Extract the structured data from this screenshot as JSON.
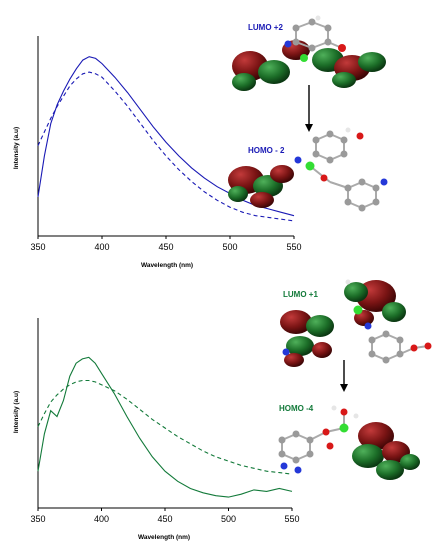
{
  "colors": {
    "blue": "#1a1ab5",
    "green": "#137a3a",
    "lobe_red": "#7a1414",
    "lobe_green": "#1c6e28",
    "atom_grey": "#9a9a9a",
    "atom_white": "#e6e6e6",
    "atom_red": "#d81818",
    "atom_blue": "#2438d8",
    "atom_metal": "#33dd33"
  },
  "chart_data": [
    {
      "type": "line",
      "xlabel": "Wavelength (nm)",
      "ylabel": "Intensity (a.u)",
      "xlim": [
        350,
        550
      ],
      "ylim": [
        0,
        1
      ],
      "xticks": [
        350,
        400,
        450,
        500,
        550
      ],
      "grid": false,
      "color": "#1a1ab5",
      "series": [
        {
          "style": "solid",
          "x": [
            350,
            355,
            360,
            365,
            370,
            375,
            380,
            385,
            390,
            395,
            400,
            410,
            420,
            430,
            440,
            450,
            460,
            470,
            480,
            490,
            500,
            510,
            520,
            530,
            540,
            550
          ],
          "y": [
            0.17,
            0.41,
            0.6,
            0.71,
            0.79,
            0.86,
            0.92,
            0.97,
            0.99,
            0.98,
            0.95,
            0.87,
            0.78,
            0.68,
            0.58,
            0.49,
            0.41,
            0.34,
            0.28,
            0.23,
            0.19,
            0.15,
            0.12,
            0.1,
            0.08,
            0.06
          ]
        },
        {
          "style": "dashed",
          "x": [
            350,
            355,
            360,
            365,
            370,
            375,
            380,
            385,
            390,
            395,
            400,
            410,
            420,
            430,
            440,
            450,
            460,
            470,
            480,
            490,
            500,
            510,
            520,
            530,
            540,
            550
          ],
          "y": [
            0.47,
            0.55,
            0.63,
            0.7,
            0.76,
            0.82,
            0.86,
            0.89,
            0.9,
            0.89,
            0.87,
            0.79,
            0.7,
            0.6,
            0.5,
            0.41,
            0.33,
            0.26,
            0.2,
            0.15,
            0.11,
            0.08,
            0.06,
            0.05,
            0.04,
            0.03
          ]
        }
      ],
      "annotations": [
        "LUMO +2",
        "HOMO - 2"
      ]
    },
    {
      "type": "line",
      "xlabel": "Wavelength (nm)",
      "ylabel": "Intensity (a.u)",
      "xlim": [
        350,
        550
      ],
      "ylim": [
        0,
        1
      ],
      "xticks": [
        350,
        400,
        450,
        500,
        550
      ],
      "grid": false,
      "color": "#137a3a",
      "series": [
        {
          "style": "solid",
          "x": [
            350,
            355,
            360,
            365,
            370,
            375,
            380,
            385,
            390,
            395,
            400,
            410,
            420,
            430,
            440,
            450,
            460,
            470,
            480,
            490,
            500,
            510,
            520,
            530,
            540,
            550
          ],
          "y": [
            0.2,
            0.46,
            0.62,
            0.58,
            0.69,
            0.86,
            0.95,
            0.98,
            0.99,
            0.95,
            0.88,
            0.74,
            0.58,
            0.43,
            0.3,
            0.2,
            0.13,
            0.08,
            0.05,
            0.03,
            0.02,
            0.04,
            0.07,
            0.06,
            0.08,
            0.06
          ]
        },
        {
          "style": "dashed",
          "x": [
            350,
            355,
            360,
            365,
            370,
            375,
            380,
            385,
            390,
            395,
            400,
            410,
            420,
            430,
            440,
            450,
            460,
            470,
            480,
            490,
            500,
            510,
            520,
            530,
            540,
            550
          ],
          "y": [
            0.51,
            0.6,
            0.68,
            0.73,
            0.77,
            0.8,
            0.82,
            0.83,
            0.83,
            0.82,
            0.8,
            0.76,
            0.7,
            0.63,
            0.56,
            0.5,
            0.44,
            0.39,
            0.34,
            0.3,
            0.27,
            0.24,
            0.22,
            0.2,
            0.19,
            0.18
          ]
        }
      ],
      "annotations": [
        "LUMO +1",
        "HOMO -4"
      ]
    }
  ]
}
